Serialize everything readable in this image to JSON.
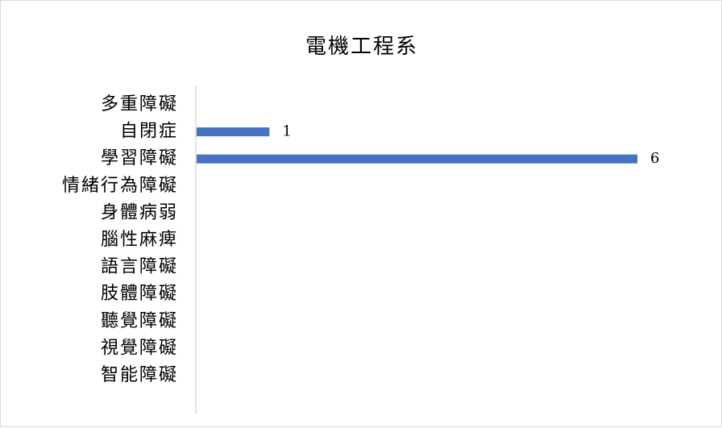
{
  "chart_data": {
    "type": "bar",
    "orientation": "horizontal",
    "title": "電機工程系",
    "categories": [
      "多重障礙",
      "自閉症",
      "學習障礙",
      "情緒行為障礙",
      "身體病弱",
      "腦性麻痺",
      "語言障礙",
      "肢體障礙",
      "聽覺障礙",
      "視覺障礙",
      "智能障礙"
    ],
    "values": [
      0,
      1,
      6,
      0,
      0,
      0,
      0,
      0,
      0,
      0,
      0
    ],
    "data_labels": [
      "",
      "1",
      "6",
      "",
      "",
      "",
      "",
      "",
      "",
      "",
      ""
    ],
    "xlim": [
      0,
      6
    ],
    "grid": false,
    "legend": "none",
    "colors": {
      "bar": "#4472c4",
      "axis": "#d9d9d9"
    }
  }
}
